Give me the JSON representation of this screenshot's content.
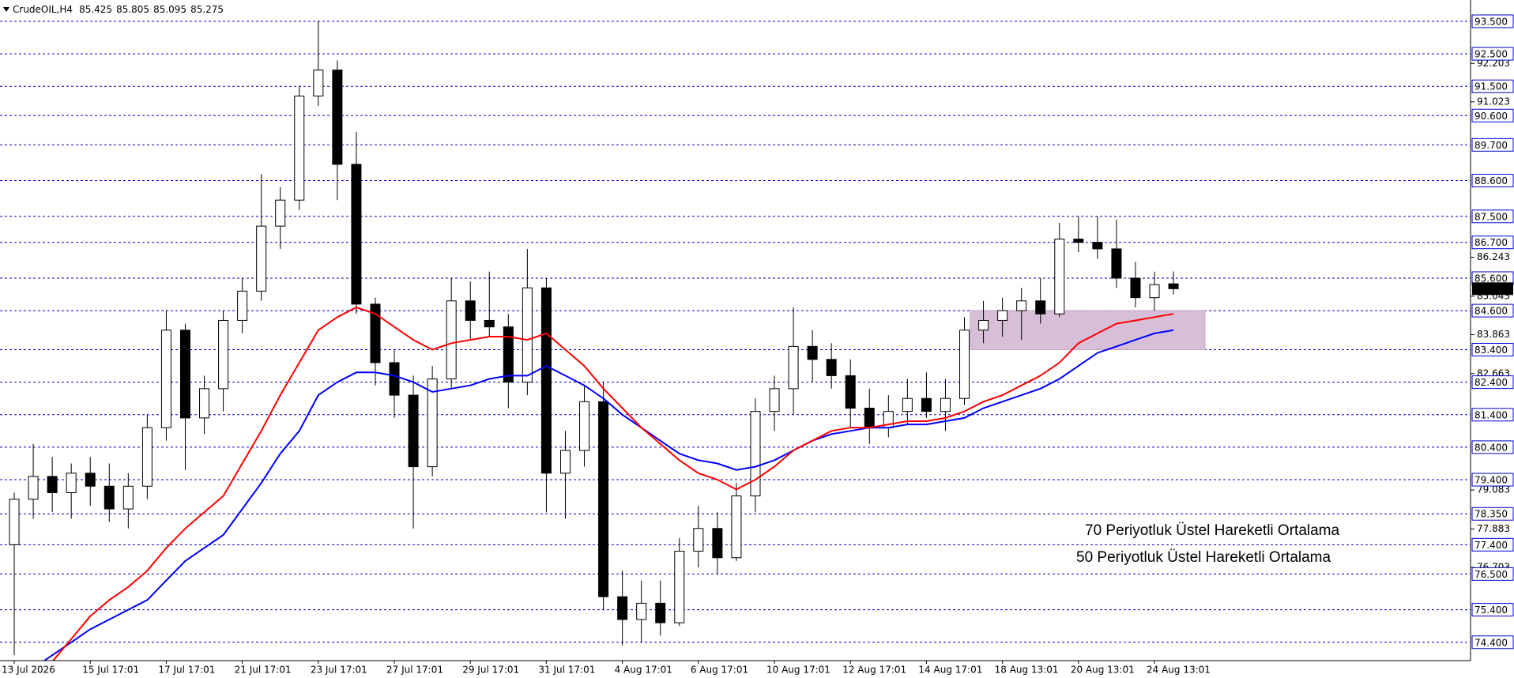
{
  "chart_data": {
    "type": "candlestick",
    "symbol": "CrudeOIL,H4",
    "header_values": [
      85.425,
      85.805,
      85.095,
      85.275
    ],
    "current_price": 85.275,
    "ylim": [
      73.835,
      94.155
    ],
    "yticks": [
      92.203,
      91.023,
      86.243,
      85.043,
      83.863,
      82.663,
      79.083,
      77.883,
      76.703
    ],
    "levels": [
      {
        "value": 93.5,
        "label": "93.500"
      },
      {
        "value": 92.5,
        "label": "92.500"
      },
      {
        "value": 91.5,
        "label": "91.500"
      },
      {
        "value": 90.6,
        "label": "90.600"
      },
      {
        "value": 89.7,
        "label": "89.700"
      },
      {
        "value": 88.6,
        "label": "88.600"
      },
      {
        "value": 87.5,
        "label": "87.500"
      },
      {
        "value": 86.7,
        "label": "86.700"
      },
      {
        "value": 85.6,
        "label": "85.600"
      },
      {
        "value": 84.6,
        "label": "84.600"
      },
      {
        "value": 83.4,
        "label": "83.400"
      },
      {
        "value": 82.4,
        "label": "82.400"
      },
      {
        "value": 81.4,
        "label": "81.400"
      },
      {
        "value": 80.4,
        "label": "80.400"
      },
      {
        "value": 79.4,
        "label": "79.400"
      },
      {
        "value": 78.35,
        "label": "78.350"
      },
      {
        "value": 77.4,
        "label": "77.400"
      },
      {
        "value": 76.5,
        "label": "76.500"
      },
      {
        "value": 75.4,
        "label": "75.400"
      },
      {
        "value": 74.4,
        "label": "74.400"
      }
    ],
    "level_color": "#0000cd",
    "zone": {
      "top": 84.6,
      "bottom": 83.4,
      "color": "#d8bfd8"
    },
    "categories": [
      "13 Jul 2026",
      null,
      null,
      null,
      "15 Jul 17:01",
      null,
      null,
      null,
      "17 Jul 17:01",
      null,
      null,
      null,
      "21 Jul 17:01",
      null,
      null,
      null,
      "23 Jul 17:01",
      null,
      null,
      null,
      "27 Jul 17:01",
      null,
      null,
      null,
      "29 Jul 17:01",
      null,
      null,
      null,
      "31 Jul 17:01",
      null,
      null,
      null,
      "4 Aug 17:01",
      null,
      null,
      null,
      "6 Aug 17:01",
      null,
      null,
      null,
      "10 Aug 17:01",
      null,
      null,
      null,
      "12 Aug 17:01",
      null,
      null,
      null,
      "14 Aug 17:01",
      null,
      null,
      null,
      "18 Aug 13:01",
      null,
      null,
      null,
      "20 Aug 13:01",
      null,
      null,
      null,
      "24 Aug 13:01",
      null
    ],
    "open": [
      77.4,
      78.8,
      79.5,
      79.0,
      79.6,
      79.2,
      78.5,
      79.2,
      81.0,
      84.0,
      81.3,
      82.2,
      84.3,
      85.2,
      87.2,
      88.0,
      91.2,
      92.0,
      89.1,
      84.8,
      83.0,
      82.0,
      79.8,
      82.5,
      84.9,
      84.3,
      84.1,
      82.4,
      85.3,
      79.6,
      80.3,
      81.8,
      75.8,
      75.1,
      75.6,
      75.0,
      77.2,
      77.9,
      77.0,
      78.9,
      81.5,
      82.2,
      83.5,
      83.1,
      82.6,
      81.6,
      81.0,
      81.5,
      81.9,
      81.5,
      81.9,
      84.0,
      84.3,
      84.6,
      84.9,
      84.5,
      86.8,
      86.7,
      86.5,
      85.6,
      85.0,
      85.425
    ],
    "high": [
      79.0,
      80.5,
      80.1,
      79.9,
      80.1,
      79.9,
      79.6,
      81.4,
      84.6,
      84.2,
      82.6,
      84.6,
      85.6,
      88.8,
      88.4,
      91.5,
      93.5,
      92.3,
      90.1,
      85.0,
      83.4,
      82.6,
      82.9,
      85.6,
      85.5,
      85.8,
      84.5,
      86.5,
      85.6,
      80.9,
      82.3,
      82.4,
      76.6,
      76.3,
      76.3,
      77.6,
      78.6,
      78.4,
      79.3,
      81.9,
      82.6,
      84.7,
      84.0,
      83.6,
      83.1,
      82.2,
      82.0,
      82.5,
      82.7,
      82.5,
      84.4,
      84.9,
      85.0,
      85.3,
      85.6,
      87.3,
      87.5,
      87.5,
      87.4,
      86.1,
      85.8,
      85.805
    ],
    "low": [
      74.0,
      78.2,
      78.4,
      78.2,
      78.6,
      78.1,
      77.9,
      78.8,
      80.6,
      79.7,
      80.8,
      81.5,
      83.9,
      84.9,
      86.5,
      87.7,
      90.9,
      88.0,
      84.5,
      82.3,
      81.3,
      77.9,
      79.5,
      82.2,
      83.7,
      83.8,
      81.6,
      82.0,
      78.4,
      78.2,
      79.8,
      75.4,
      74.3,
      74.4,
      74.6,
      74.9,
      76.7,
      76.5,
      76.9,
      78.4,
      80.9,
      81.4,
      82.4,
      82.2,
      81.0,
      80.5,
      80.7,
      81.1,
      81.3,
      80.9,
      81.7,
      83.6,
      83.8,
      83.7,
      84.2,
      84.4,
      86.4,
      86.2,
      85.3,
      84.7,
      84.6,
      85.095
    ],
    "close": [
      78.8,
      79.5,
      79.0,
      79.6,
      79.2,
      78.5,
      79.2,
      81.0,
      84.0,
      81.3,
      82.2,
      84.3,
      85.2,
      87.2,
      88.0,
      91.2,
      92.0,
      89.1,
      84.8,
      83.0,
      82.0,
      79.8,
      82.5,
      84.9,
      84.3,
      84.1,
      82.4,
      85.3,
      79.6,
      80.3,
      81.8,
      75.8,
      75.1,
      75.6,
      75.0,
      77.2,
      77.9,
      77.0,
      78.9,
      81.5,
      82.2,
      83.5,
      83.1,
      82.6,
      81.6,
      81.0,
      81.5,
      81.9,
      81.5,
      81.9,
      84.0,
      84.3,
      84.6,
      84.9,
      84.5,
      86.8,
      86.7,
      86.5,
      85.6,
      85.0,
      85.4,
      85.275
    ],
    "series": [
      {
        "name": "70 Periyotluk Üstel Hareketli Ortalama",
        "color": "#0000ff",
        "values": [
          72.9,
          73.6,
          74.0,
          74.4,
          74.8,
          75.1,
          75.4,
          75.7,
          76.3,
          76.9,
          77.3,
          77.7,
          78.5,
          79.3,
          80.2,
          80.9,
          82.0,
          82.4,
          82.7,
          82.7,
          82.6,
          82.4,
          82.1,
          82.2,
          82.3,
          82.5,
          82.6,
          82.6,
          82.9,
          82.6,
          82.3,
          81.9,
          81.4,
          81.0,
          80.6,
          80.2,
          80.0,
          79.9,
          79.7,
          79.8,
          80.0,
          80.3,
          80.6,
          80.8,
          80.9,
          81.0,
          81.0,
          81.1,
          81.1,
          81.2,
          81.3,
          81.6,
          81.8,
          82.0,
          82.2,
          82.5,
          82.9,
          83.3,
          83.5,
          83.7,
          83.9,
          84.0
        ]
      },
      {
        "name": "50 Periyotluk Üstel Hareketli Ortalama",
        "color": "#ff0000",
        "values": [
          73.0,
          73.4,
          73.8,
          74.5,
          75.2,
          75.7,
          76.1,
          76.6,
          77.3,
          77.9,
          78.4,
          78.9,
          79.9,
          80.9,
          82.0,
          83.0,
          84.0,
          84.4,
          84.7,
          84.5,
          84.1,
          83.7,
          83.4,
          83.6,
          83.7,
          83.8,
          83.8,
          83.7,
          83.9,
          83.4,
          82.9,
          82.2,
          81.6,
          81.0,
          80.5,
          80.0,
          79.6,
          79.4,
          79.1,
          79.4,
          79.8,
          80.3,
          80.6,
          80.9,
          81.0,
          81.0,
          81.1,
          81.2,
          81.2,
          81.3,
          81.5,
          81.8,
          82.0,
          82.3,
          82.6,
          83.0,
          83.6,
          83.9,
          84.2,
          84.3,
          84.4,
          84.5
        ]
      }
    ]
  }
}
